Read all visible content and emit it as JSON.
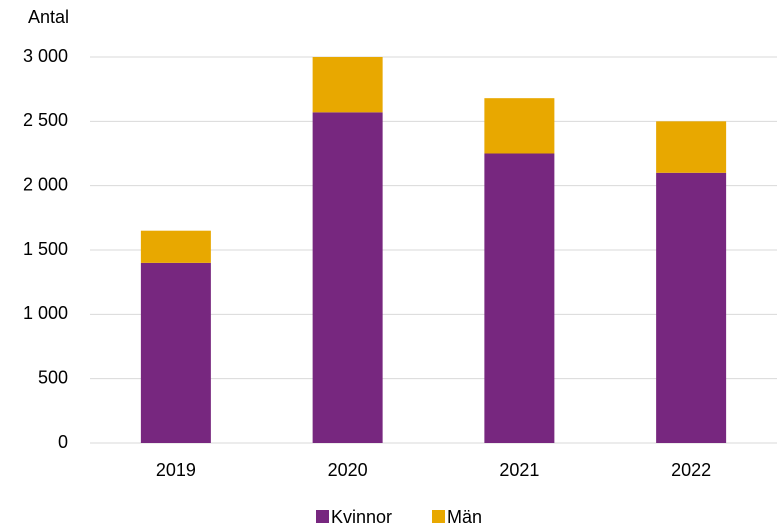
{
  "chart_data": {
    "type": "stacked_bar",
    "y_label": "Antal",
    "categories": [
      "2019",
      "2020",
      "2021",
      "2022"
    ],
    "series": [
      {
        "name": "Kvinnor",
        "color": "#77277f",
        "values": [
          1400,
          2570,
          2250,
          2100
        ]
      },
      {
        "name": "Män",
        "color": "#e8a800",
        "values": [
          250,
          430,
          430,
          400
        ]
      }
    ],
    "ylim": [
      0,
      3000
    ],
    "yticks": [
      0,
      500,
      {
        "value": 1000,
        "label": "1 000"
      },
      {
        "value": 1500,
        "label": "1 500"
      },
      {
        "value": 2000,
        "label": "2 000"
      },
      {
        "value": 2500,
        "label": "2 500"
      },
      {
        "value": 3000,
        "label": "3 000"
      }
    ],
    "grid": true,
    "legend": "bottom"
  }
}
